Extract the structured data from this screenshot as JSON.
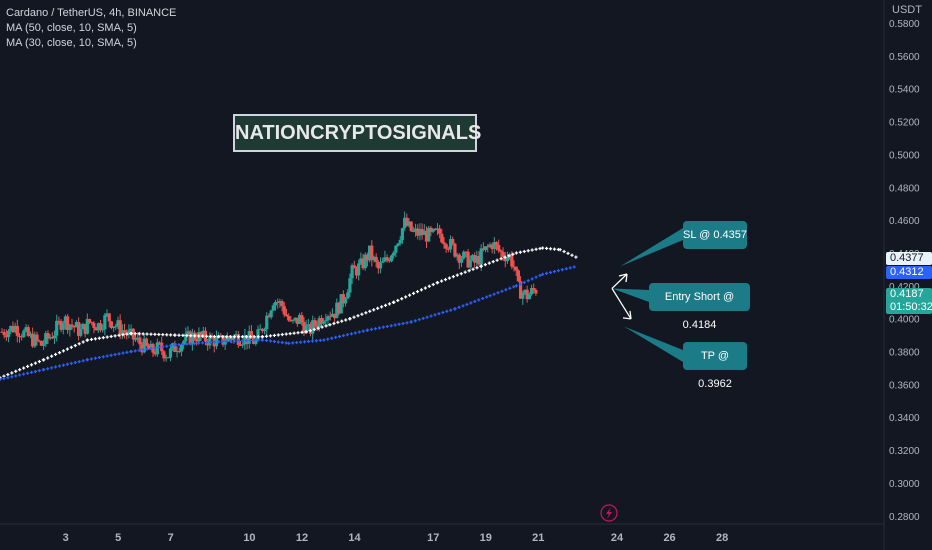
{
  "legend": {
    "title": "Cardano / TetherUS, 4h, BINANCE",
    "ma1": "MA (50, close, 10, SMA, 5)",
    "ma2": "MA (30, close, 10, SMA, 5)"
  },
  "watermark": "NATIONCRYPTOSIGNALS",
  "callouts": {
    "sl": "SL @ 0.4357",
    "entry": "Entry Short @ 0.4184",
    "tp": "TP @ 0.3962"
  },
  "axis": {
    "currency": "USDT",
    "price_ticks": [
      "0.5800",
      "0.5600",
      "0.5400",
      "0.5200",
      "0.5000",
      "0.4800",
      "0.4600",
      "0.4400",
      "0.4200",
      "0.4000",
      "0.3800",
      "0.3600",
      "0.3400",
      "0.3200",
      "0.3000",
      "0.2800"
    ],
    "date_ticks": [
      "3",
      "5",
      "7",
      "10",
      "12",
      "14",
      "17",
      "19",
      "21",
      "24",
      "26",
      "28"
    ]
  },
  "price_tags": {
    "ma_white": "0.4377",
    "ma_blue": "0.4312",
    "last": "0.4187",
    "countdown": "01:50:32"
  },
  "colors": {
    "background": "#131722",
    "up": "#26a69a",
    "down": "#ef5350",
    "ma_white": "#ffffff",
    "ma_blue": "#2962ff",
    "callout": "#1b7b86"
  },
  "chart_data": {
    "type": "candlestick",
    "title": "Cardano / TetherUS, 4h, BINANCE",
    "ylim": [
      0.275,
      0.594
    ],
    "x_index_range": [
      0,
      202
    ],
    "x_labels": [
      {
        "label": "3",
        "x": 15
      },
      {
        "label": "5",
        "x": 27
      },
      {
        "label": "7",
        "x": 39
      },
      {
        "label": "10",
        "x": 57
      },
      {
        "label": "12",
        "x": 69
      },
      {
        "label": "14",
        "x": 81
      },
      {
        "label": "17",
        "x": 99
      },
      {
        "label": "19",
        "x": 111
      },
      {
        "label": "21",
        "x": 123
      },
      {
        "label": "24",
        "x": 141
      },
      {
        "label": "26",
        "x": 153
      },
      {
        "label": "28",
        "x": 165
      }
    ],
    "close_path": [
      [
        0,
        0.392
      ],
      [
        3,
        0.395
      ],
      [
        6,
        0.389
      ],
      [
        9,
        0.384
      ],
      [
        12,
        0.392
      ],
      [
        14,
        0.4
      ],
      [
        16,
        0.396
      ],
      [
        18,
        0.392
      ],
      [
        20,
        0.398
      ],
      [
        22,
        0.396
      ],
      [
        24,
        0.401
      ],
      [
        26,
        0.396
      ],
      [
        28,
        0.392
      ],
      [
        30,
        0.388
      ],
      [
        32,
        0.384
      ],
      [
        34,
        0.38
      ],
      [
        36,
        0.382
      ],
      [
        38,
        0.378
      ],
      [
        40,
        0.384
      ],
      [
        42,
        0.387
      ],
      [
        44,
        0.39
      ],
      [
        46,
        0.388
      ],
      [
        48,
        0.387
      ],
      [
        50,
        0.386
      ],
      [
        52,
        0.389
      ],
      [
        54,
        0.389
      ],
      [
        56,
        0.388
      ],
      [
        58,
        0.386
      ],
      [
        60,
        0.398
      ],
      [
        62,
        0.412
      ],
      [
        64,
        0.408
      ],
      [
        66,
        0.396
      ],
      [
        68,
        0.4
      ],
      [
        70,
        0.392
      ],
      [
        72,
        0.398
      ],
      [
        74,
        0.404
      ],
      [
        76,
        0.404
      ],
      [
        78,
        0.412
      ],
      [
        80,
        0.428
      ],
      [
        82,
        0.432
      ],
      [
        84,
        0.44
      ],
      [
        86,
        0.43
      ],
      [
        88,
        0.436
      ],
      [
        90,
        0.446
      ],
      [
        92,
        0.458
      ],
      [
        94,
        0.452
      ],
      [
        96,
        0.452
      ],
      [
        98,
        0.45
      ],
      [
        100,
        0.452
      ],
      [
        102,
        0.446
      ],
      [
        104,
        0.44
      ],
      [
        106,
        0.436
      ],
      [
        108,
        0.434
      ],
      [
        110,
        0.44
      ],
      [
        112,
        0.446
      ],
      [
        114,
        0.44
      ],
      [
        116,
        0.438
      ],
      [
        117,
        0.432
      ],
      [
        118,
        0.418
      ],
      [
        120,
        0.414
      ],
      [
        122,
        0.418
      ]
    ],
    "series": [
      {
        "name": "MA (50, close, 10, SMA, 5)",
        "color": "#ffffff",
        "points": [
          [
            0,
            0.364
          ],
          [
            10,
            0.375
          ],
          [
            20,
            0.387
          ],
          [
            30,
            0.391
          ],
          [
            40,
            0.39
          ],
          [
            50,
            0.389
          ],
          [
            60,
            0.389
          ],
          [
            70,
            0.392
          ],
          [
            80,
            0.4
          ],
          [
            90,
            0.41
          ],
          [
            100,
            0.422
          ],
          [
            110,
            0.432
          ],
          [
            118,
            0.44
          ],
          [
            124,
            0.443
          ],
          [
            128,
            0.442
          ],
          [
            132,
            0.437
          ]
        ]
      },
      {
        "name": "MA (30, close, 10, SMA, 5)",
        "color": "#2962ff",
        "points": [
          [
            0,
            0.363
          ],
          [
            10,
            0.369
          ],
          [
            20,
            0.375
          ],
          [
            30,
            0.38
          ],
          [
            40,
            0.384
          ],
          [
            50,
            0.386
          ],
          [
            60,
            0.387
          ],
          [
            66,
            0.385
          ],
          [
            74,
            0.387
          ],
          [
            84,
            0.393
          ],
          [
            94,
            0.398
          ],
          [
            104,
            0.406
          ],
          [
            112,
            0.414
          ],
          [
            118,
            0.42
          ],
          [
            124,
            0.427
          ],
          [
            132,
            0.432
          ]
        ]
      }
    ],
    "annotations": [
      {
        "text": "SL @ 0.4357",
        "price": 0.4357
      },
      {
        "text": "Entry Short @ 0.4184",
        "price": 0.4184
      },
      {
        "text": "TP @ 0.3962",
        "price": 0.3962
      }
    ]
  }
}
